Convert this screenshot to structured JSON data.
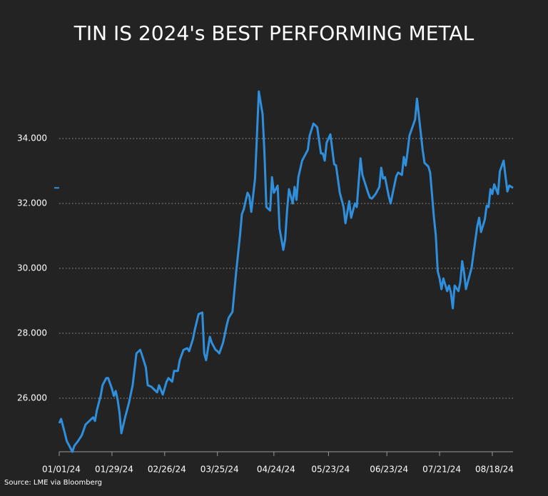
{
  "chart_data": {
    "type": "line",
    "title": "TIN IS 2024's BEST PERFORMING METAL",
    "source": "Source: LME via Bloomberg",
    "x": [
      "01/01/24",
      "01/02/24",
      "01/04/24",
      "01/05/24",
      "01/08/24",
      "01/09/24",
      "01/11/24",
      "01/13/24",
      "01/15/24",
      "01/17/24",
      "01/19/24",
      "01/20/24",
      "01/21/24",
      "01/23/24",
      "01/24/24",
      "01/26/24",
      "01/27/24",
      "01/29/24",
      "01/30/24",
      "01/31/24",
      "02/01/24",
      "02/02/24",
      "02/03/24",
      "02/05/24",
      "02/07/24",
      "02/09/24",
      "02/11/24",
      "02/13/24",
      "02/14/24",
      "02/16/24",
      "02/17/24",
      "02/19/24",
      "02/20/24",
      "02/22/24",
      "02/23/24",
      "02/25/24",
      "02/27/24",
      "02/28/24",
      "03/01/24",
      "03/02/24",
      "03/04/24",
      "03/05/24",
      "03/07/24",
      "03/09/24",
      "03/10/24",
      "03/12/24",
      "03/13/24",
      "03/15/24",
      "03/17/24",
      "03/18/24",
      "03/19/24",
      "03/21/24",
      "03/22/24",
      "03/24/24",
      "03/25/24",
      "03/26/24",
      "03/28/24",
      "03/30/24",
      "03/31/24",
      "04/02/24",
      "04/04/24",
      "04/06/24",
      "04/07/24",
      "04/08/24",
      "04/10/24",
      "04/11/24",
      "04/12/24",
      "04/14/24",
      "04/15/24",
      "04/16/24",
      "04/18/24",
      "04/19/24",
      "04/20/24",
      "04/22/24",
      "04/23/24",
      "04/24/24",
      "04/26/24",
      "04/27/24",
      "04/29/24",
      "04/30/24",
      "05/01/24",
      "05/02/24",
      "05/04/24",
      "05/05/24",
      "05/06/24",
      "05/07/24",
      "05/09/24",
      "05/10/24",
      "05/12/24",
      "05/13/24",
      "05/15/24",
      "05/17/24",
      "05/19/24",
      "05/20/24",
      "05/21/24",
      "05/22/24",
      "05/24/24",
      "05/26/24",
      "05/27/24",
      "05/29/24",
      "05/31/24",
      "06/01/24",
      "06/03/24",
      "06/04/24",
      "06/06/24",
      "06/07/24",
      "06/09/24",
      "06/10/24",
      "06/13/24",
      "06/14/24",
      "06/15/24",
      "06/17/24",
      "06/19/24",
      "06/20/24",
      "06/21/24",
      "06/22/24",
      "06/24/24",
      "06/25/24",
      "06/26/24",
      "06/28/24",
      "06/29/24",
      "07/01/24",
      "07/02/24",
      "07/03/24",
      "07/04/24",
      "07/05/24",
      "07/07/24",
      "07/08/24",
      "07/09/24",
      "07/10/24",
      "07/12/24",
      "07/13/24",
      "07/15/24",
      "07/16/24",
      "07/18/24",
      "07/19/24",
      "07/20/24",
      "07/21/24",
      "07/22/24",
      "07/23/24",
      "07/25/24",
      "07/26/24",
      "07/27/24",
      "07/28/24",
      "07/29/24",
      "07/31/24",
      "08/01/24",
      "08/02/24",
      "08/03/24",
      "08/04/24",
      "08/05/24",
      "08/07/24",
      "08/08/24",
      "08/10/24",
      "08/11/24",
      "08/12/24",
      "08/14/24",
      "08/15/24",
      "08/16/24",
      "08/17/24",
      "08/18/24",
      "08/19/24",
      "08/21/24",
      "08/22/24",
      "08/24/24",
      "08/25/24",
      "08/26/24",
      "08/27/24",
      "08/29/24"
    ],
    "series": [
      {
        "name": "Tin",
        "color": "#2f8fdc",
        "values": [
          25230,
          25360,
          24920,
          24680,
          24350,
          24530,
          24680,
          24860,
          25190,
          25300,
          25410,
          25300,
          25630,
          26070,
          26400,
          26620,
          26620,
          26290,
          26070,
          26220,
          25960,
          25560,
          24920,
          25410,
          25850,
          26400,
          27380,
          27490,
          27320,
          26950,
          26400,
          26350,
          26290,
          26180,
          26400,
          26110,
          26510,
          26620,
          26510,
          26840,
          26840,
          27170,
          27490,
          27540,
          27450,
          27820,
          28110,
          28590,
          28640,
          27380,
          27170,
          27890,
          27710,
          27490,
          27450,
          27380,
          27710,
          28260,
          28480,
          28660,
          29910,
          31010,
          31670,
          31820,
          32330,
          32220,
          31740,
          32770,
          34090,
          35450,
          34750,
          33540,
          31890,
          31780,
          32810,
          32330,
          32550,
          31230,
          30570,
          30900,
          31780,
          32440,
          32000,
          32510,
          32110,
          32810,
          33320,
          33430,
          33650,
          34090,
          34460,
          34350,
          33540,
          33540,
          33320,
          33870,
          34130,
          33210,
          33170,
          32330,
          31890,
          31390,
          32070,
          31560,
          32000,
          31890,
          33390,
          32880,
          32330,
          32180,
          32150,
          32290,
          32510,
          33100,
          32770,
          32810,
          32220,
          32000,
          32290,
          32840,
          32950,
          32880,
          33430,
          33170,
          33600,
          34090,
          34420,
          34590,
          35230,
          34700,
          33650,
          33250,
          33140,
          32950,
          31560,
          31010,
          29910,
          29690,
          29360,
          29690,
          29300,
          29470,
          29250,
          28770,
          29470,
          29300,
          29580,
          30220,
          29870,
          29360,
          29580,
          30020,
          30460,
          31300,
          31560,
          31120,
          31500,
          31930,
          31890,
          32440,
          32290,
          32590,
          32290,
          32990,
          33320,
          32840,
          32370,
          32550,
          32480
        ]
      }
    ],
    "xlim": [
      "01/01/24",
      "08/29/24"
    ],
    "xticks": [
      "01/01/24",
      "01/29/24",
      "02/26/24",
      "03/25/24",
      "04/24/24",
      "05/23/24",
      "06/23/24",
      "07/21/24",
      "08/18/24"
    ],
    "ylim": [
      24350,
      35630
    ],
    "yticks": [
      {
        "value": 26000,
        "label": "26.000"
      },
      {
        "value": 28000,
        "label": "28.000"
      },
      {
        "value": 30000,
        "label": "30.000"
      },
      {
        "value": 32000,
        "label": "32.000"
      },
      {
        "value": 34000,
        "label": "34.000"
      }
    ],
    "grid": true
  }
}
